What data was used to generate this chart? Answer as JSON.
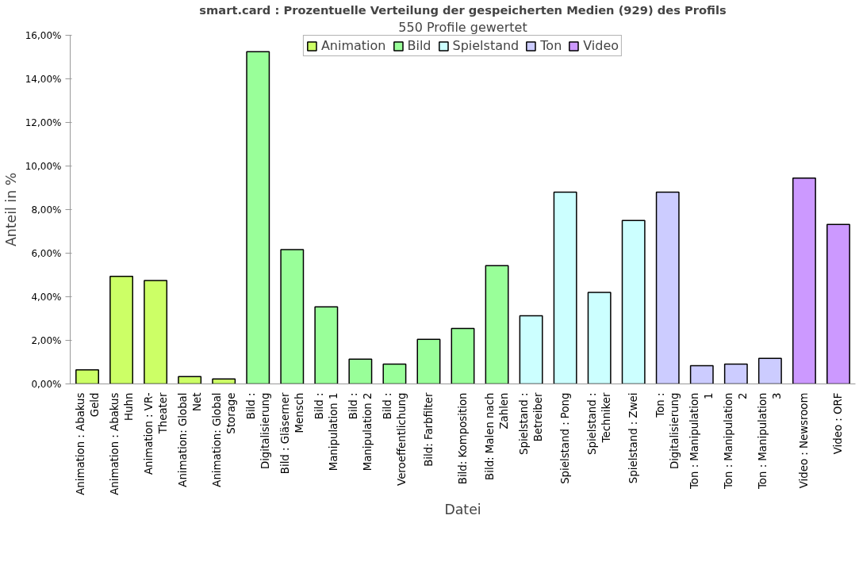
{
  "chart_data": {
    "type": "bar",
    "title": "smart.card : Prozentuelle Verteilung der gespeicherten Medien (929) des Profils",
    "subtitle": "550 Profile gewertet",
    "xlabel": "Datei",
    "ylabel": "Anteil in %",
    "categories": [
      "Animation : Abakus Geld",
      "Animation : Abakus Huhn",
      "Animation : VR-Theater",
      "Animation: Global Net",
      "Animation: Global Storage",
      "Bild : Digitalisierung",
      "Bild : Gläserner Mensch",
      "Bild : Manipulation 1",
      "Bild : Manipulation 2",
      "Bild : Veroeffentlichung",
      "Bild: Farbfilter",
      "Bild: Komposition",
      "Bild: Malen nach Zahlen",
      "Spielstand : Betreiber",
      "Spielstand : Pong",
      "Spielstand : Techniker",
      "Spielstand : Zwei",
      "Ton : Digitalisierung",
      "Ton : Manipulation 1",
      "Ton : Manipulation 2",
      "Ton : Manipulation 3",
      "Video : Newsroom",
      "Video : ORF"
    ],
    "series": [
      {
        "name": "Animation",
        "color": "#ccff66",
        "values": [
          0.65,
          4.94,
          4.75,
          0.34,
          0.23,
          null,
          null,
          null,
          null,
          null,
          null,
          null,
          null,
          null,
          null,
          null,
          null,
          null,
          null,
          null,
          null,
          null,
          null
        ]
      },
      {
        "name": "Bild",
        "color": "#99ff99",
        "values": [
          null,
          null,
          null,
          null,
          null,
          15.25,
          6.16,
          3.54,
          1.14,
          0.91,
          2.05,
          2.55,
          5.43,
          null,
          null,
          null,
          null,
          null,
          null,
          null,
          null,
          null,
          null
        ]
      },
      {
        "name": "Spielstand",
        "color": "#ccffff",
        "values": [
          null,
          null,
          null,
          null,
          null,
          null,
          null,
          null,
          null,
          null,
          null,
          null,
          null,
          3.13,
          8.8,
          4.2,
          7.5,
          null,
          null,
          null,
          null,
          null,
          null
        ]
      },
      {
        "name": "Ton",
        "color": "#ccccff",
        "values": [
          null,
          null,
          null,
          null,
          null,
          null,
          null,
          null,
          null,
          null,
          null,
          null,
          null,
          null,
          null,
          null,
          null,
          8.8,
          0.84,
          0.91,
          1.17,
          null,
          null
        ]
      },
      {
        "name": "Video",
        "color": "#cc99ff",
        "values": [
          null,
          null,
          null,
          null,
          null,
          null,
          null,
          null,
          null,
          null,
          null,
          null,
          null,
          null,
          null,
          null,
          null,
          null,
          null,
          null,
          null,
          9.45,
          7.32
        ]
      }
    ],
    "ylim": [
      0,
      16
    ],
    "yticks": [
      {
        "value": 0,
        "label": "0,00%"
      },
      {
        "value": 2,
        "label": "2,00%"
      },
      {
        "value": 4,
        "label": "4,00%"
      },
      {
        "value": 6,
        "label": "6,00%"
      },
      {
        "value": 8,
        "label": "8,00%"
      },
      {
        "value": 10,
        "label": "10,00%"
      },
      {
        "value": 12,
        "label": "12,00%"
      },
      {
        "value": 14,
        "label": "14,00%"
      },
      {
        "value": 16,
        "label": "16,00%"
      }
    ],
    "grid": false,
    "legend": "top"
  }
}
